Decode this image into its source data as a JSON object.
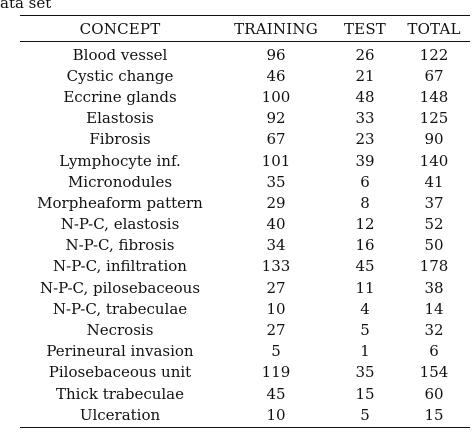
{
  "caption_fragment": "ata set",
  "table": {
    "columns": [
      "CONCEPT",
      "TRAINING",
      "TEST",
      "TOTAL"
    ],
    "rows": [
      [
        "Blood vessel",
        "96",
        "26",
        "122"
      ],
      [
        "Cystic change",
        "46",
        "21",
        "67"
      ],
      [
        "Eccrine glands",
        "100",
        "48",
        "148"
      ],
      [
        "Elastosis",
        "92",
        "33",
        "125"
      ],
      [
        "Fibrosis",
        "67",
        "23",
        "90"
      ],
      [
        "Lymphocyte inf.",
        "101",
        "39",
        "140"
      ],
      [
        "Micronodules",
        "35",
        "6",
        "41"
      ],
      [
        "Morpheaform pattern",
        "29",
        "8",
        "37"
      ],
      [
        "N-P-C, elastosis",
        "40",
        "12",
        "52"
      ],
      [
        "N-P-C, fibrosis",
        "34",
        "16",
        "50"
      ],
      [
        "N-P-C, infiltration",
        "133",
        "45",
        "178"
      ],
      [
        "N-P-C, pilosebaceous",
        "27",
        "11",
        "38"
      ],
      [
        "N-P-C, trabeculae",
        "10",
        "4",
        "14"
      ],
      [
        "Necrosis",
        "27",
        "5",
        "32"
      ],
      [
        "Perineural invasion",
        "5",
        "1",
        "6"
      ],
      [
        "Pilosebaceous unit",
        "119",
        "35",
        "154"
      ],
      [
        "Thick trabeculae",
        "45",
        "15",
        "60"
      ],
      [
        "Ulceration",
        "10",
        "5",
        "15"
      ]
    ]
  }
}
